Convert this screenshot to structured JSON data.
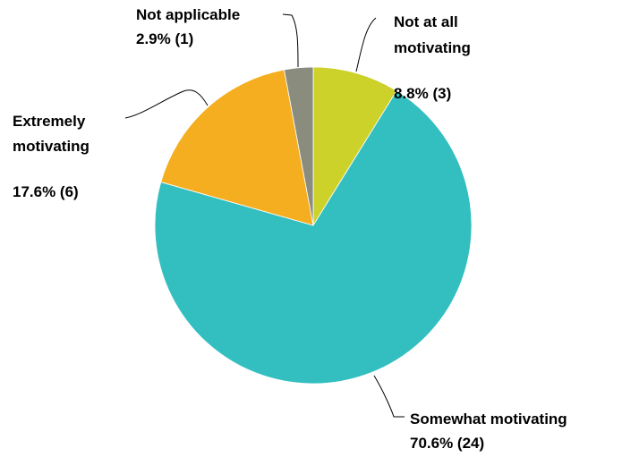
{
  "chart_data": {
    "type": "pie",
    "title": "",
    "slices": [
      {
        "label_lines": [
          "Not at all",
          "motivating"
        ],
        "value_text": "8.8% (3)",
        "count": 3,
        "percent": 8.8,
        "color": "#CCD22A"
      },
      {
        "label_lines": [
          "Somewhat motivating"
        ],
        "value_text": "70.6% (24)",
        "count": 24,
        "percent": 70.6,
        "color": "#33BEC0"
      },
      {
        "label_lines": [
          "Extremely",
          "motivating"
        ],
        "value_text": "17.6% (6)",
        "count": 6,
        "percent": 17.6,
        "color": "#F4AE20"
      },
      {
        "label_lines": [
          "Not applicable"
        ],
        "value_text": "2.9% (1)",
        "count": 1,
        "percent": 2.9,
        "color": "#8A8D7E"
      }
    ],
    "start_angle": "top",
    "direction": "clockwise",
    "legend": "none"
  }
}
